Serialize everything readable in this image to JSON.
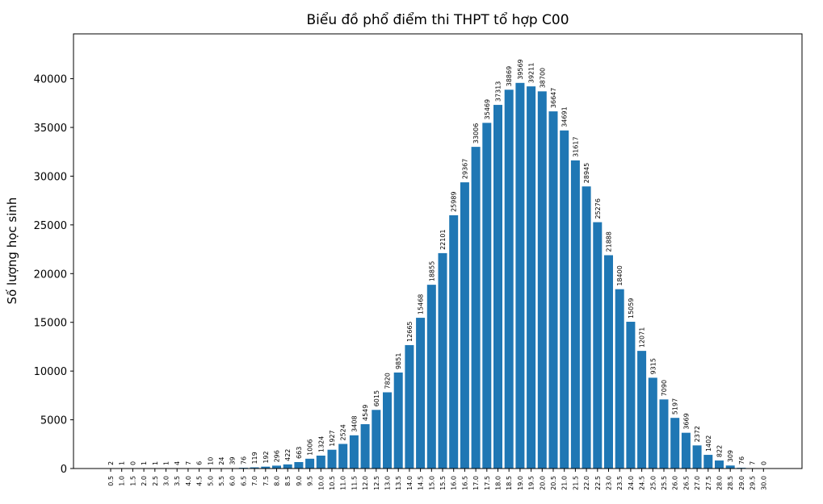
{
  "chart_data": {
    "type": "bar",
    "title": "Biểu đồ phổ điểm thi THPT tổ hợp C00",
    "xlabel": "",
    "ylabel": "Số lượng học sinh",
    "ylim": [
      0,
      44600
    ],
    "yticks": [
      0,
      5000,
      10000,
      15000,
      20000,
      25000,
      30000,
      35000,
      40000
    ],
    "grid": false,
    "bar_color": "#1f77b4",
    "categories": [
      "0.5",
      "1.0",
      "1.5",
      "2.0",
      "2.5",
      "3.0",
      "3.5",
      "4.0",
      "4.5",
      "5.0",
      "5.5",
      "6.0",
      "6.5",
      "7.0",
      "7.5",
      "8.0",
      "8.5",
      "9.0",
      "9.5",
      "10.0",
      "10.5",
      "11.0",
      "11.5",
      "12.0",
      "12.5",
      "13.0",
      "13.5",
      "14.0",
      "14.5",
      "15.0",
      "15.5",
      "16.0",
      "16.5",
      "17.0",
      "17.5",
      "18.0",
      "18.5",
      "19.0",
      "19.5",
      "20.0",
      "20.5",
      "21.0",
      "21.5",
      "22.0",
      "22.5",
      "23.0",
      "23.5",
      "24.0",
      "24.5",
      "25.0",
      "25.5",
      "26.0",
      "26.5",
      "27.0",
      "27.5",
      "28.0",
      "28.5",
      "29.0",
      "29.5",
      "30.0"
    ],
    "values": [
      2,
      1,
      0,
      1,
      1,
      1,
      4,
      7,
      6,
      10,
      24,
      39,
      76,
      119,
      192,
      296,
      422,
      663,
      1006,
      1324,
      1927,
      2524,
      3408,
      4549,
      6015,
      7820,
      9851,
      12665,
      15468,
      18855,
      22101,
      25989,
      29367,
      33006,
      35469,
      37313,
      38869,
      39569,
      39211,
      38700,
      36647,
      34691,
      31617,
      28945,
      25276,
      21888,
      18400,
      15059,
      12071,
      9315,
      7090,
      5197,
      3669,
      2372,
      1402,
      822,
      309,
      76,
      7,
      0
    ]
  }
}
